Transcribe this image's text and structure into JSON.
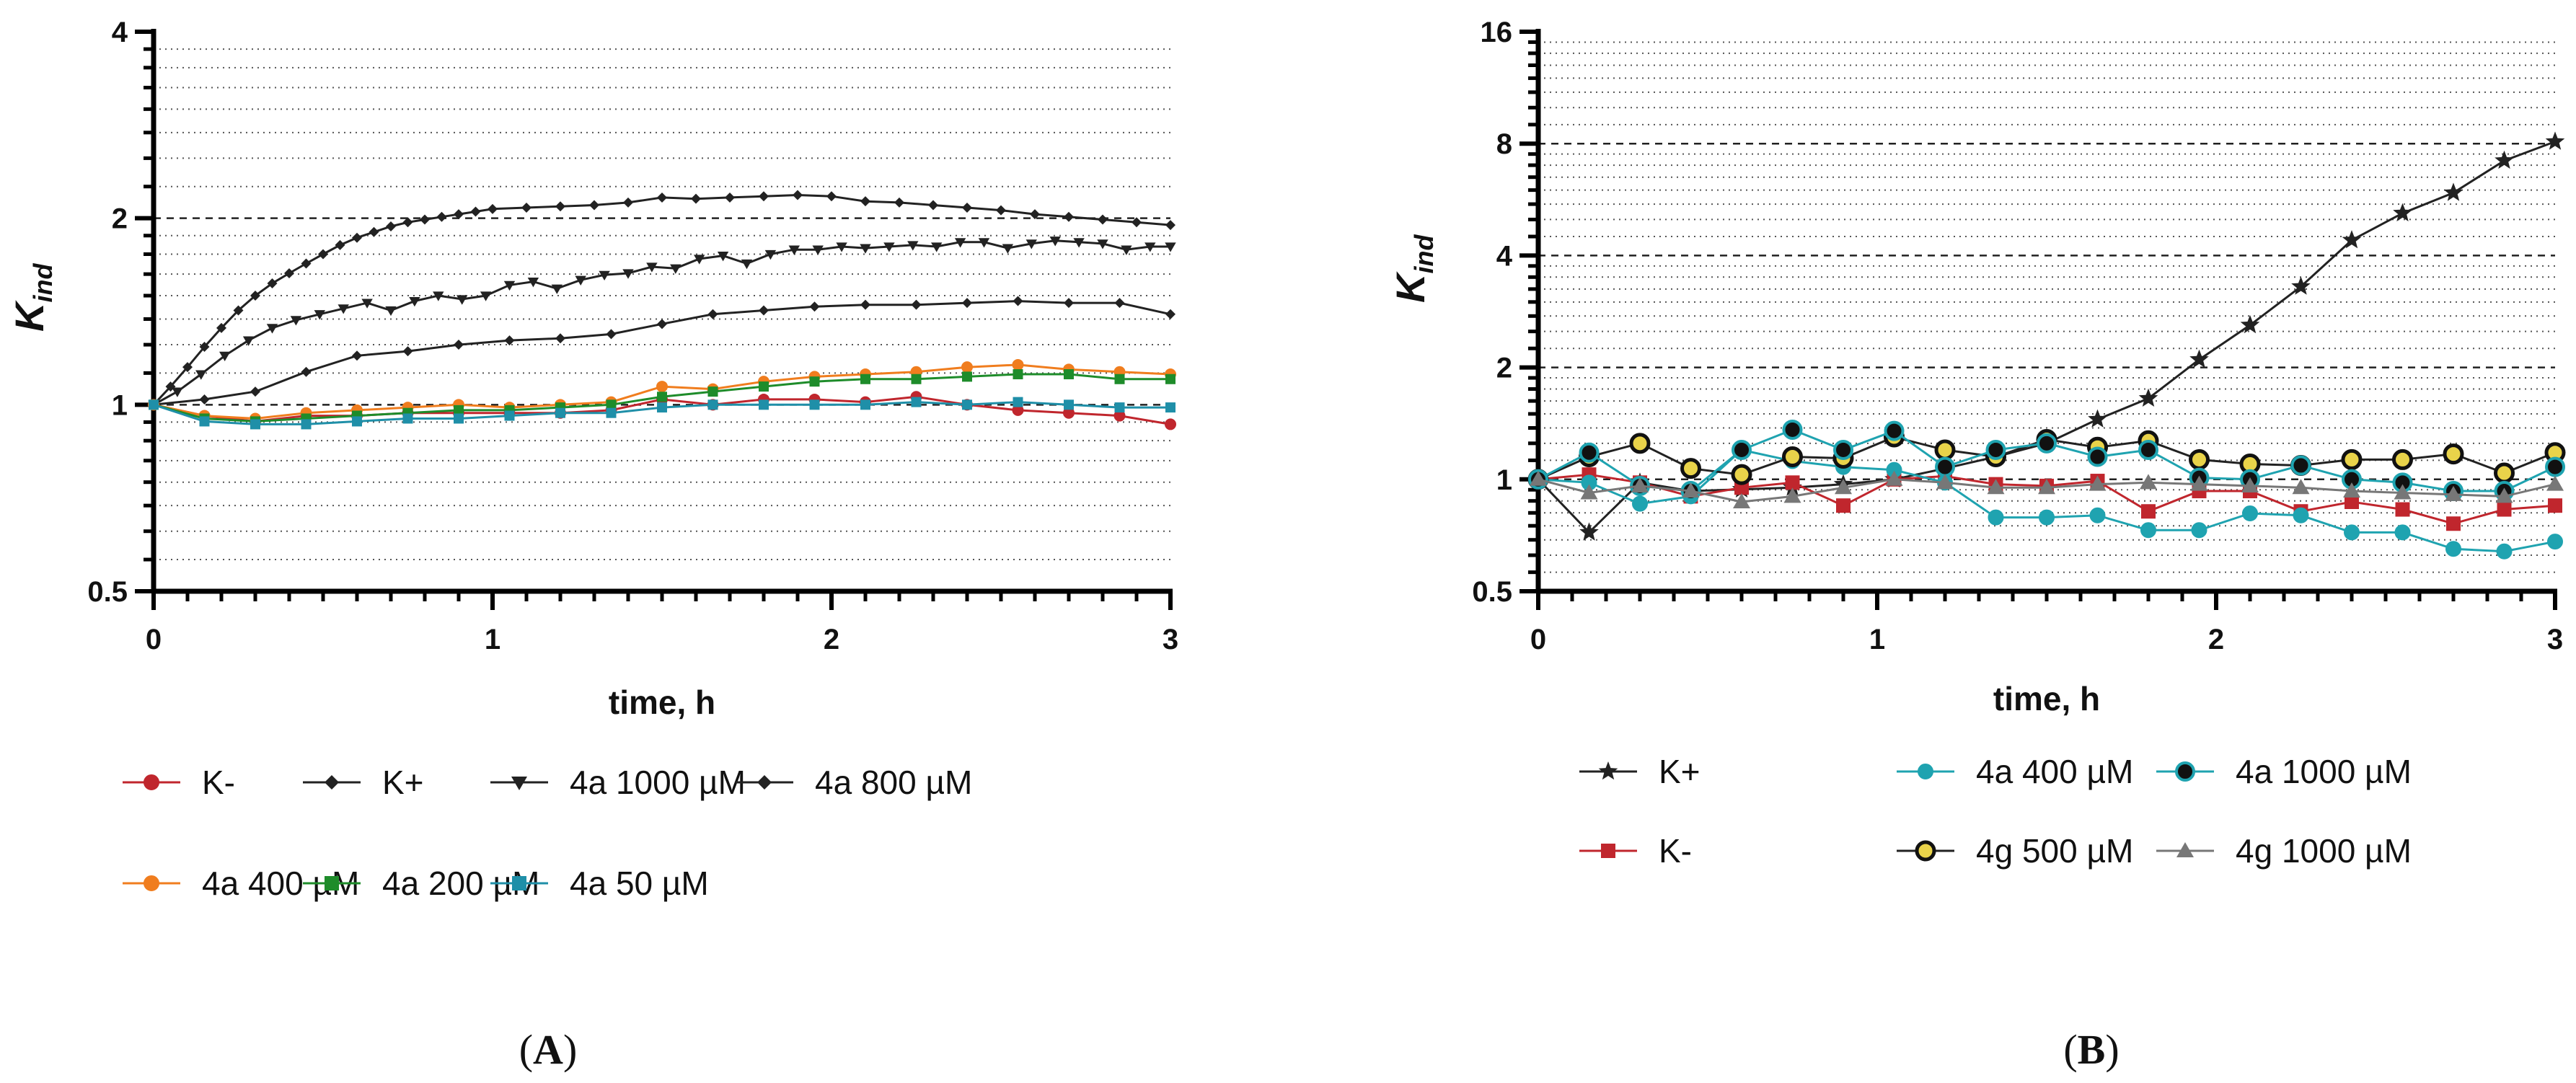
{
  "chart_data": [
    {
      "panel_label": "A",
      "type": "line",
      "ylabel_main": "K",
      "ylabel_sub": "ind",
      "xlabel": "time, h",
      "yscale": "log2",
      "ylim": [
        0.5,
        4
      ],
      "xlim": [
        0,
        3
      ],
      "x_ticks": [
        "0",
        "1",
        "2",
        "3"
      ],
      "y_ticks": [
        "0.5",
        "1",
        "2",
        "4"
      ],
      "dashed_lines": [
        1,
        2
      ],
      "series": [
        {
          "name": "K-",
          "color": "#c0262d",
          "marker": "circle",
          "x": [
            0,
            0.15,
            0.3,
            0.45,
            0.6,
            0.75,
            0.9,
            1.05,
            1.2,
            1.35,
            1.5,
            1.65,
            1.8,
            1.95,
            2.1,
            2.25,
            2.4,
            2.55,
            2.7,
            2.85,
            3.0
          ],
          "y": [
            1.0,
            0.96,
            0.94,
            0.96,
            0.96,
            0.97,
            0.97,
            0.97,
            0.97,
            0.98,
            1.02,
            1.0,
            1.02,
            1.02,
            1.01,
            1.03,
            1.0,
            0.98,
            0.97,
            0.96,
            0.93
          ]
        },
        {
          "name": "K+",
          "color": "#222222",
          "marker": "diamond",
          "x": [
            0,
            0.05,
            0.1,
            0.15,
            0.2,
            0.25,
            0.3,
            0.35,
            0.4,
            0.45,
            0.5,
            0.55,
            0.6,
            0.65,
            0.7,
            0.75,
            0.8,
            0.85,
            0.9,
            0.95,
            1.0,
            1.1,
            1.2,
            1.3,
            1.4,
            1.5,
            1.6,
            1.7,
            1.8,
            1.9,
            2.0,
            2.1,
            2.2,
            2.3,
            2.4,
            2.5,
            2.6,
            2.7,
            2.8,
            2.9,
            3.0
          ],
          "y": [
            1.0,
            1.07,
            1.15,
            1.24,
            1.33,
            1.42,
            1.5,
            1.57,
            1.63,
            1.69,
            1.75,
            1.81,
            1.86,
            1.9,
            1.94,
            1.97,
            1.99,
            2.01,
            2.03,
            2.05,
            2.07,
            2.08,
            2.09,
            2.1,
            2.12,
            2.16,
            2.15,
            2.16,
            2.17,
            2.18,
            2.17,
            2.13,
            2.12,
            2.1,
            2.08,
            2.06,
            2.03,
            2.01,
            1.99,
            1.97,
            1.95
          ]
        },
        {
          "name": "4a 1000 µM",
          "color": "#222222",
          "marker": "triangle-down",
          "x": [
            0,
            0.07,
            0.14,
            0.21,
            0.28,
            0.35,
            0.42,
            0.49,
            0.56,
            0.63,
            0.7,
            0.77,
            0.84,
            0.91,
            0.98,
            1.05,
            1.12,
            1.19,
            1.26,
            1.33,
            1.4,
            1.47,
            1.54,
            1.61,
            1.68,
            1.75,
            1.82,
            1.89,
            1.96,
            2.03,
            2.1,
            2.17,
            2.24,
            2.31,
            2.38,
            2.45,
            2.52,
            2.59,
            2.66,
            2.73,
            2.8,
            2.87,
            2.94,
            3.0
          ],
          "y": [
            1.0,
            1.05,
            1.12,
            1.2,
            1.27,
            1.33,
            1.37,
            1.4,
            1.43,
            1.46,
            1.42,
            1.47,
            1.5,
            1.48,
            1.5,
            1.56,
            1.58,
            1.54,
            1.59,
            1.62,
            1.63,
            1.67,
            1.66,
            1.72,
            1.74,
            1.69,
            1.75,
            1.78,
            1.78,
            1.8,
            1.79,
            1.8,
            1.81,
            1.8,
            1.83,
            1.83,
            1.79,
            1.82,
            1.84,
            1.83,
            1.82,
            1.78,
            1.8,
            1.8
          ]
        },
        {
          "name": "4a 800 µM",
          "color": "#222222",
          "marker": "diamond",
          "x": [
            0,
            0.15,
            0.3,
            0.45,
            0.6,
            0.75,
            0.9,
            1.05,
            1.2,
            1.35,
            1.5,
            1.65,
            1.8,
            1.95,
            2.1,
            2.25,
            2.4,
            2.55,
            2.7,
            2.85,
            3.0
          ],
          "y": [
            1.0,
            1.02,
            1.05,
            1.13,
            1.2,
            1.22,
            1.25,
            1.27,
            1.28,
            1.3,
            1.35,
            1.4,
            1.42,
            1.44,
            1.45,
            1.45,
            1.46,
            1.47,
            1.46,
            1.46,
            1.4
          ]
        },
        {
          "name": "4a 400 µM",
          "color": "#f07d1e",
          "marker": "circle",
          "x": [
            0,
            0.15,
            0.3,
            0.45,
            0.6,
            0.75,
            0.9,
            1.05,
            1.2,
            1.35,
            1.5,
            1.65,
            1.8,
            1.95,
            2.1,
            2.25,
            2.4,
            2.55,
            2.7,
            2.85,
            3.0
          ],
          "y": [
            1.0,
            0.96,
            0.95,
            0.97,
            0.98,
            0.99,
            1.0,
            0.99,
            1.0,
            1.01,
            1.07,
            1.06,
            1.09,
            1.11,
            1.12,
            1.13,
            1.15,
            1.16,
            1.14,
            1.13,
            1.12
          ]
        },
        {
          "name": "4a 200 µM",
          "color": "#1e8c2a",
          "marker": "square",
          "x": [
            0,
            0.15,
            0.3,
            0.45,
            0.6,
            0.75,
            0.9,
            1.05,
            1.2,
            1.35,
            1.5,
            1.65,
            1.8,
            1.95,
            2.1,
            2.25,
            2.4,
            2.55,
            2.7,
            2.85,
            3.0
          ],
          "y": [
            1.0,
            0.95,
            0.94,
            0.95,
            0.96,
            0.97,
            0.98,
            0.98,
            0.99,
            1.0,
            1.03,
            1.05,
            1.07,
            1.09,
            1.1,
            1.1,
            1.11,
            1.12,
            1.12,
            1.1,
            1.1
          ]
        },
        {
          "name": "4a 50 µM",
          "color": "#1f8fa8",
          "marker": "square",
          "x": [
            0,
            0.15,
            0.3,
            0.45,
            0.6,
            0.75,
            0.9,
            1.05,
            1.2,
            1.35,
            1.5,
            1.65,
            1.8,
            1.95,
            2.1,
            2.25,
            2.4,
            2.55,
            2.7,
            2.85,
            3.0
          ],
          "y": [
            1.0,
            0.94,
            0.93,
            0.93,
            0.94,
            0.95,
            0.95,
            0.96,
            0.97,
            0.97,
            0.99,
            1.0,
            1.0,
            1.0,
            1.0,
            1.01,
            1.0,
            1.01,
            1.0,
            0.99,
            0.99
          ]
        }
      ]
    },
    {
      "panel_label": "B",
      "type": "line",
      "ylabel_main": "K",
      "ylabel_sub": "ind",
      "xlabel": "time, h",
      "yscale": "log2",
      "ylim": [
        0.5,
        16
      ],
      "xlim": [
        0,
        3
      ],
      "x_ticks": [
        "0",
        "1",
        "2",
        "3"
      ],
      "y_ticks": [
        "0.5",
        "1",
        "2",
        "4",
        "8",
        "16"
      ],
      "dashed_lines": [
        1,
        2,
        4,
        8
      ],
      "series": [
        {
          "name": "K+",
          "color": "#222222",
          "marker": "star",
          "x": [
            0,
            0.15,
            0.3,
            0.45,
            0.6,
            0.75,
            0.9,
            1.05,
            1.2,
            1.35,
            1.5,
            1.65,
            1.8,
            1.95,
            2.1,
            2.25,
            2.4,
            2.55,
            2.7,
            2.85,
            3.0
          ],
          "y": [
            1.0,
            0.72,
            0.98,
            0.93,
            0.94,
            0.95,
            0.97,
            1.0,
            1.07,
            1.15,
            1.25,
            1.45,
            1.65,
            2.1,
            2.6,
            3.3,
            4.4,
            5.2,
            5.9,
            7.2,
            8.1
          ]
        },
        {
          "name": "K-",
          "color": "#c0262d",
          "marker": "square",
          "x": [
            0,
            0.15,
            0.3,
            0.45,
            0.6,
            0.75,
            0.9,
            1.05,
            1.2,
            1.35,
            1.5,
            1.65,
            1.8,
            1.95,
            2.1,
            2.25,
            2.4,
            2.55,
            2.7,
            2.85,
            3.0
          ],
          "y": [
            1.0,
            1.03,
            0.98,
            0.9,
            0.95,
            0.98,
            0.85,
            1.0,
            1.02,
            0.97,
            0.96,
            0.99,
            0.82,
            0.93,
            0.93,
            0.82,
            0.87,
            0.83,
            0.76,
            0.83,
            0.85
          ]
        },
        {
          "name": "4a 400 µM",
          "color": "#1fa3b0",
          "marker": "circle",
          "x": [
            0,
            0.15,
            0.3,
            0.45,
            0.6,
            0.75,
            0.9,
            1.05,
            1.2,
            1.35,
            1.5,
            1.65,
            1.8,
            1.95,
            2.1,
            2.25,
            2.4,
            2.55,
            2.7,
            2.85,
            3.0
          ],
          "y": [
            1.0,
            0.98,
            0.86,
            0.9,
            1.2,
            1.12,
            1.08,
            1.06,
            0.98,
            0.79,
            0.79,
            0.8,
            0.73,
            0.73,
            0.81,
            0.8,
            0.72,
            0.72,
            0.65,
            0.64,
            0.68
          ]
        },
        {
          "name": "4g 500 µM",
          "color": "#222222",
          "marker": "circle-yellow",
          "x": [
            0,
            0.15,
            0.3,
            0.45,
            0.6,
            0.75,
            0.9,
            1.05,
            1.2,
            1.35,
            1.5,
            1.65,
            1.8,
            1.95,
            2.1,
            2.25,
            2.4,
            2.55,
            2.7,
            2.85,
            3.0
          ],
          "y": [
            1.0,
            1.15,
            1.25,
            1.07,
            1.03,
            1.15,
            1.14,
            1.3,
            1.2,
            1.15,
            1.28,
            1.22,
            1.27,
            1.13,
            1.1,
            1.09,
            1.13,
            1.13,
            1.17,
            1.04,
            1.18
          ]
        },
        {
          "name": "4a 1000 µM",
          "color": "#1f8fa8",
          "marker": "circle-black",
          "x": [
            0,
            0.15,
            0.3,
            0.45,
            0.6,
            0.75,
            0.9,
            1.05,
            1.2,
            1.35,
            1.5,
            1.65,
            1.8,
            1.95,
            2.1,
            2.25,
            2.4,
            2.55,
            2.7,
            2.85,
            3.0
          ],
          "y": [
            1.0,
            1.18,
            0.96,
            0.93,
            1.2,
            1.36,
            1.2,
            1.35,
            1.08,
            1.2,
            1.25,
            1.15,
            1.2,
            1.01,
            1.0,
            1.09,
            1.0,
            0.98,
            0.93,
            0.93,
            1.08
          ]
        },
        {
          "name": "4g 1000 µM",
          "color": "#777777",
          "marker": "triangle",
          "x": [
            0,
            0.15,
            0.3,
            0.45,
            0.6,
            0.75,
            0.9,
            1.05,
            1.2,
            1.35,
            1.5,
            1.65,
            1.8,
            1.95,
            2.1,
            2.25,
            2.4,
            2.55,
            2.7,
            2.85,
            3.0
          ],
          "y": [
            1.0,
            0.92,
            0.96,
            0.93,
            0.87,
            0.9,
            0.95,
            1.0,
            0.98,
            0.95,
            0.95,
            0.97,
            0.98,
            0.97,
            0.96,
            0.95,
            0.93,
            0.92,
            0.91,
            0.9,
            0.97
          ]
        }
      ]
    }
  ]
}
